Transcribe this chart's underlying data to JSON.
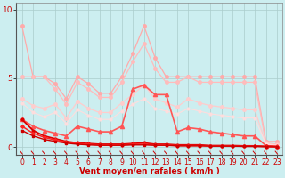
{
  "bg_color": "#cceef0",
  "grid_color": "#aacccc",
  "xlabel": "Vent moyen/en rafales ( km/h )",
  "xlim": [
    -0.5,
    23.5
  ],
  "ylim": [
    -0.6,
    10.5
  ],
  "yticks": [
    0,
    5,
    10
  ],
  "xticks": [
    0,
    1,
    2,
    3,
    4,
    5,
    6,
    7,
    8,
    9,
    10,
    11,
    12,
    13,
    14,
    15,
    16,
    17,
    18,
    19,
    20,
    21,
    22,
    23
  ],
  "series": [
    {
      "x": [
        0,
        1,
        2,
        3,
        4,
        5,
        6,
        7,
        8,
        9,
        10,
        11,
        12,
        13,
        14,
        15,
        16,
        17,
        18,
        19,
        20,
        21,
        22,
        23
      ],
      "y": [
        8.8,
        5.1,
        5.1,
        4.6,
        3.5,
        5.1,
        4.6,
        3.9,
        3.9,
        5.1,
        6.8,
        8.8,
        6.5,
        5.1,
        5.1,
        5.1,
        5.1,
        5.1,
        5.1,
        5.1,
        5.1,
        5.1,
        0.4,
        0.4
      ],
      "color": "#ffaaaa",
      "marker": "o",
      "markersize": 2.5,
      "linewidth": 0.9,
      "alpha": 1.0,
      "zorder": 2
    },
    {
      "x": [
        0,
        1,
        2,
        3,
        4,
        5,
        6,
        7,
        8,
        9,
        10,
        11,
        12,
        13,
        14,
        15,
        16,
        17,
        18,
        19,
        20,
        21,
        22,
        23
      ],
      "y": [
        5.1,
        5.1,
        5.1,
        4.2,
        3.1,
        4.7,
        4.2,
        3.6,
        3.6,
        4.7,
        6.2,
        7.5,
        5.7,
        4.7,
        4.7,
        5.1,
        4.7,
        4.7,
        4.7,
        4.7,
        4.7,
        4.7,
        0.3,
        0.2
      ],
      "color": "#ffbbbb",
      "marker": "o",
      "markersize": 2.5,
      "linewidth": 0.9,
      "alpha": 1.0,
      "zorder": 2
    },
    {
      "x": [
        0,
        1,
        2,
        3,
        4,
        5,
        6,
        7,
        8,
        9,
        10,
        11,
        12,
        13,
        14,
        15,
        16,
        17,
        18,
        19,
        20,
        21,
        22,
        23
      ],
      "y": [
        3.5,
        3.0,
        2.8,
        3.1,
        2.1,
        3.3,
        2.8,
        2.5,
        2.5,
        3.2,
        3.8,
        4.5,
        3.5,
        3.2,
        2.9,
        3.5,
        3.2,
        3.0,
        2.9,
        2.8,
        2.7,
        2.7,
        0.25,
        0.15
      ],
      "color": "#ffcccc",
      "marker": "o",
      "markersize": 2.5,
      "linewidth": 0.9,
      "alpha": 1.0,
      "zorder": 2
    },
    {
      "x": [
        0,
        1,
        2,
        3,
        4,
        5,
        6,
        7,
        8,
        9,
        10,
        11,
        12,
        13,
        14,
        15,
        16,
        17,
        18,
        19,
        20,
        21,
        22,
        23
      ],
      "y": [
        3.2,
        2.5,
        2.2,
        2.5,
        1.7,
        2.7,
        2.3,
        2.0,
        2.0,
        2.6,
        3.1,
        3.5,
        2.8,
        2.6,
        2.4,
        2.8,
        2.6,
        2.4,
        2.3,
        2.2,
        2.1,
        2.1,
        0.2,
        0.1
      ],
      "color": "#ffdddd",
      "marker": "o",
      "markersize": 2.0,
      "linewidth": 0.8,
      "alpha": 1.0,
      "zorder": 2
    },
    {
      "x": [
        0,
        1,
        2,
        3,
        4,
        5,
        6,
        7,
        8,
        9,
        10,
        11,
        12,
        13,
        14,
        15,
        16,
        17,
        18,
        19,
        20,
        21,
        22,
        23
      ],
      "y": [
        2.0,
        1.5,
        1.2,
        1.0,
        0.8,
        1.5,
        1.3,
        1.1,
        1.1,
        1.5,
        4.2,
        4.5,
        3.8,
        3.8,
        1.1,
        1.4,
        1.3,
        1.1,
        1.0,
        0.9,
        0.8,
        0.8,
        0.1,
        0.05
      ],
      "color": "#ff5555",
      "marker": "^",
      "markersize": 3.0,
      "linewidth": 1.2,
      "alpha": 1.0,
      "zorder": 3
    },
    {
      "x": [
        0,
        1,
        2,
        3,
        4,
        5,
        6,
        7,
        8,
        9,
        10,
        11,
        12,
        13,
        14,
        15,
        16,
        17,
        18,
        19,
        20,
        21,
        22,
        23
      ],
      "y": [
        2.0,
        1.2,
        0.8,
        0.6,
        0.4,
        0.3,
        0.25,
        0.2,
        0.2,
        0.2,
        0.25,
        0.3,
        0.2,
        0.2,
        0.15,
        0.15,
        0.15,
        0.1,
        0.1,
        0.1,
        0.08,
        0.08,
        0.05,
        0.03
      ],
      "color": "#dd0000",
      "marker": "o",
      "markersize": 2.0,
      "linewidth": 1.3,
      "alpha": 1.0,
      "zorder": 4
    },
    {
      "x": [
        0,
        1,
        2,
        3,
        4,
        5,
        6,
        7,
        8,
        9,
        10,
        11,
        12,
        13,
        14,
        15,
        16,
        17,
        18,
        19,
        20,
        21,
        22,
        23
      ],
      "y": [
        1.5,
        1.0,
        0.7,
        0.5,
        0.35,
        0.25,
        0.2,
        0.15,
        0.15,
        0.15,
        0.2,
        0.2,
        0.15,
        0.15,
        0.1,
        0.1,
        0.1,
        0.08,
        0.08,
        0.08,
        0.05,
        0.05,
        0.03,
        0.02
      ],
      "color": "#ff2222",
      "marker": "D",
      "markersize": 1.8,
      "linewidth": 1.1,
      "alpha": 1.0,
      "zorder": 4
    },
    {
      "x": [
        0,
        1,
        2,
        3,
        4,
        5,
        6,
        7,
        8,
        9,
        10,
        11,
        12,
        13,
        14,
        15,
        16,
        17,
        18,
        19,
        20,
        21,
        22,
        23
      ],
      "y": [
        1.2,
        0.8,
        0.55,
        0.4,
        0.28,
        0.2,
        0.15,
        0.12,
        0.12,
        0.12,
        0.15,
        0.15,
        0.12,
        0.12,
        0.08,
        0.08,
        0.08,
        0.06,
        0.06,
        0.06,
        0.04,
        0.04,
        0.02,
        0.01
      ],
      "color": "#cc0000",
      "marker": "s",
      "markersize": 1.5,
      "linewidth": 1.0,
      "alpha": 1.0,
      "zorder": 4
    }
  ],
  "tick_fontsize": 5.5,
  "label_fontsize": 6.5
}
